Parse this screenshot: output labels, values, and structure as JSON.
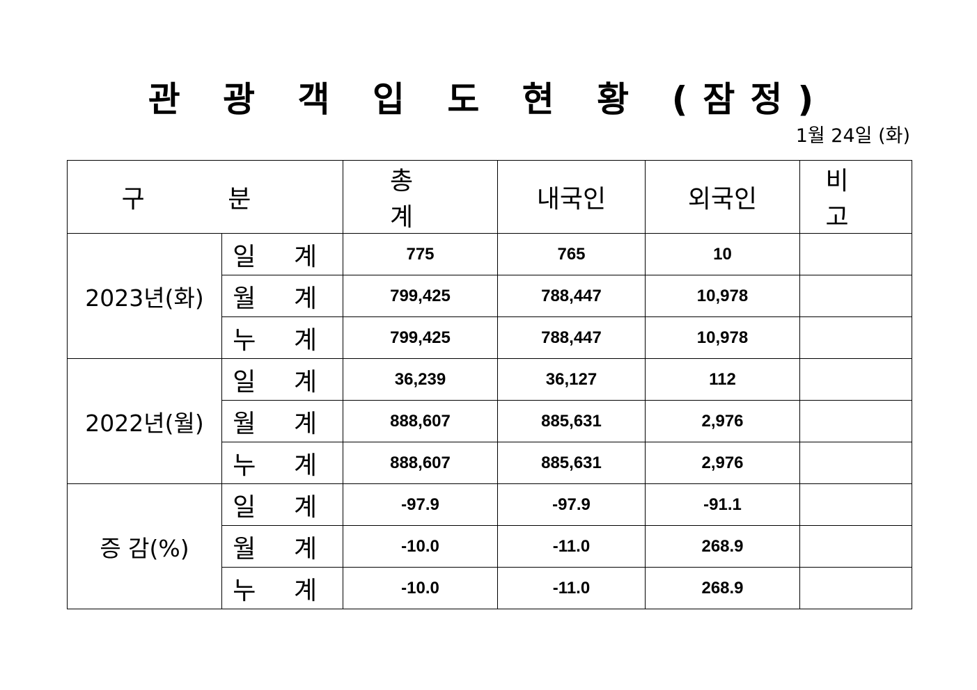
{
  "title": "관 광 객 입 도 현 황 (잠정)",
  "date": "1월 24일 (화)",
  "headers": [
    "구 분",
    "총 계",
    "내국인",
    "외국인",
    "비 고"
  ],
  "groups": [
    {
      "label": "2023년(화)",
      "rows": [
        {
          "sub": "일 계",
          "total": "775",
          "domestic": "765",
          "foreign": "10",
          "note": ""
        },
        {
          "sub": "월 계",
          "total": "799,425",
          "domestic": "788,447",
          "foreign": "10,978",
          "note": ""
        },
        {
          "sub": "누 계",
          "total": "799,425",
          "domestic": "788,447",
          "foreign": "10,978",
          "note": ""
        }
      ]
    },
    {
      "label": "2022년(월)",
      "rows": [
        {
          "sub": "일 계",
          "total": "36,239",
          "domestic": "36,127",
          "foreign": "112",
          "note": ""
        },
        {
          "sub": "월 계",
          "total": "888,607",
          "domestic": "885,631",
          "foreign": "2,976",
          "note": ""
        },
        {
          "sub": "누 계",
          "total": "888,607",
          "domestic": "885,631",
          "foreign": "2,976",
          "note": ""
        }
      ]
    },
    {
      "label": "증 감(%)",
      "rows": [
        {
          "sub": "일 계",
          "total": "-97.9",
          "domestic": "-97.9",
          "foreign": "-91.1",
          "note": ""
        },
        {
          "sub": "월 계",
          "total": "-10.0",
          "domestic": "-11.0",
          "foreign": "268.9",
          "note": ""
        },
        {
          "sub": "누 계",
          "total": "-10.0",
          "domestic": "-11.0",
          "foreign": "268.9",
          "note": ""
        }
      ]
    }
  ]
}
